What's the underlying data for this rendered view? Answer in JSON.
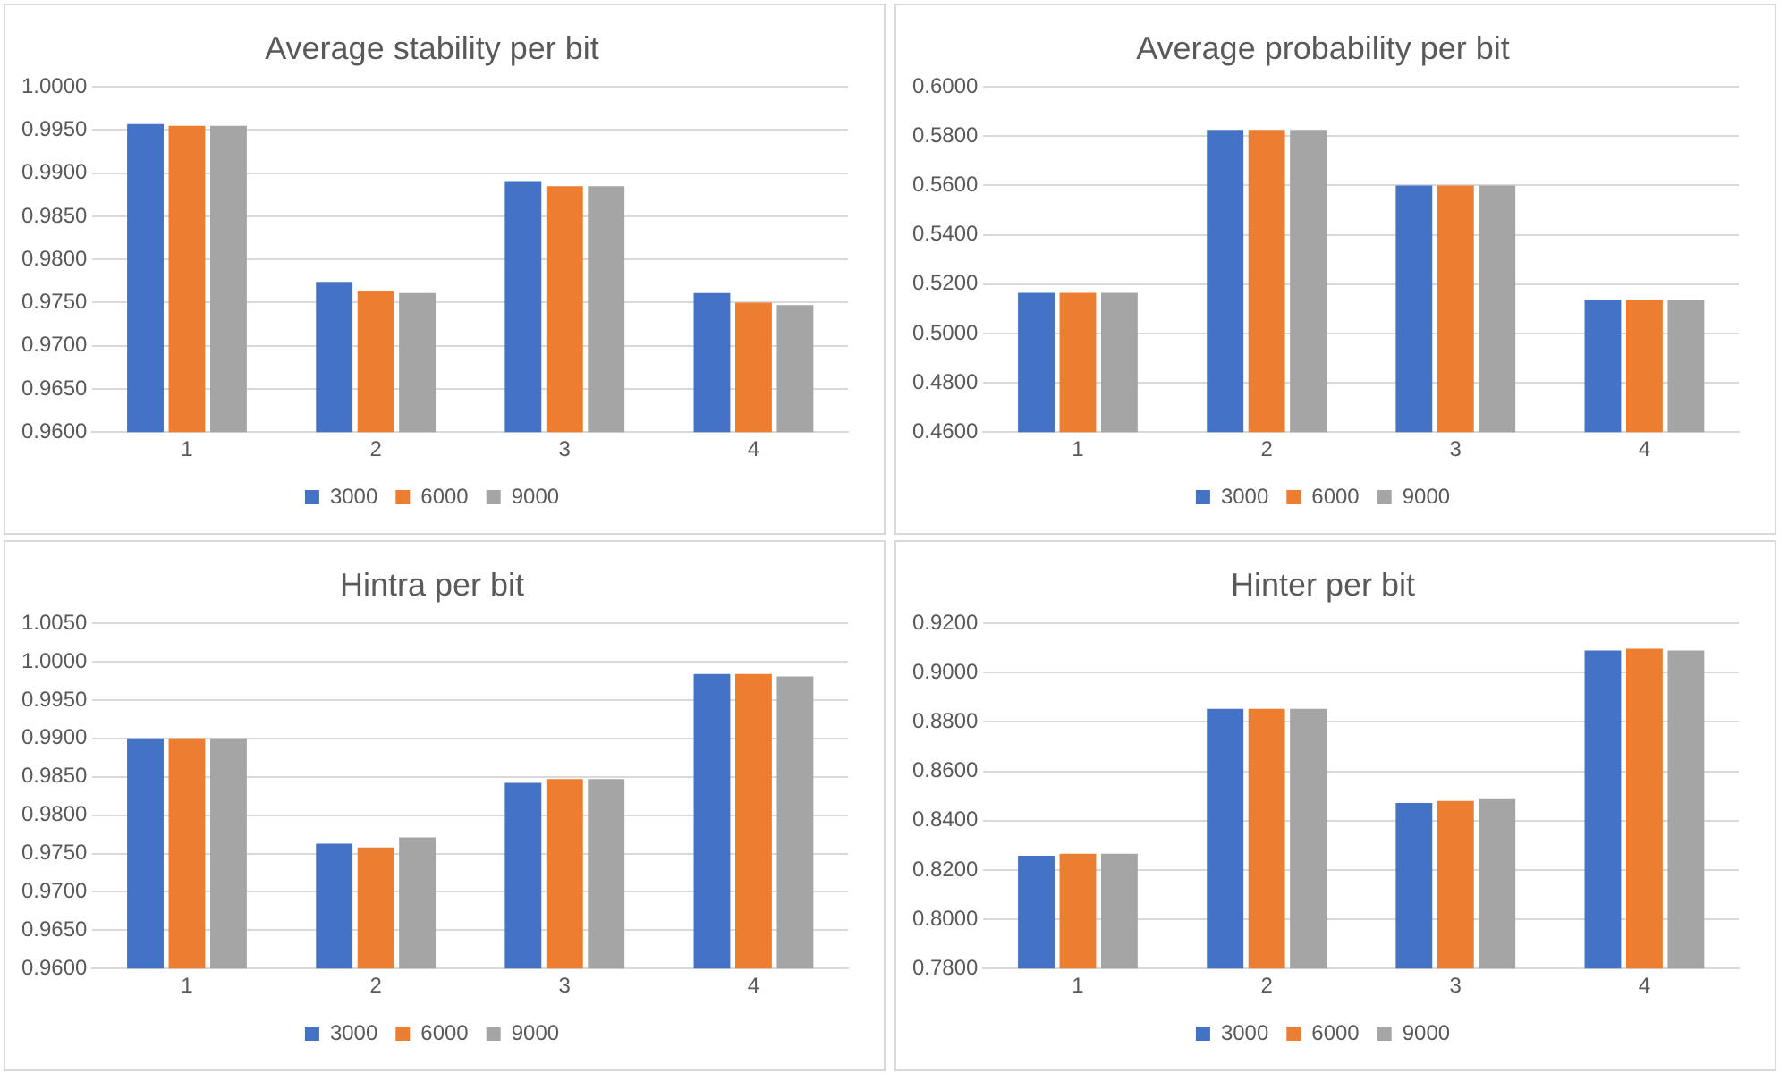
{
  "chart_data": [
    {
      "type": "bar",
      "title": "Average stability per bit",
      "categories": [
        "1",
        "2",
        "3",
        "4"
      ],
      "series": [
        {
          "name": "3000",
          "color": "#4472c4",
          "values": [
            0.9957,
            0.9774,
            0.9891,
            0.9761
          ]
        },
        {
          "name": "6000",
          "color": "#ed7d31",
          "values": [
            0.9955,
            0.9763,
            0.9885,
            0.975
          ]
        },
        {
          "name": "9000",
          "color": "#a5a5a5",
          "values": [
            0.9955,
            0.9761,
            0.9885,
            0.9747
          ]
        }
      ],
      "ylim": [
        0.96,
        1.0
      ],
      "yticks": [
        {
          "value": 0.96,
          "label": "0.9600"
        },
        {
          "value": 0.965,
          "label": "0.9650"
        },
        {
          "value": 0.97,
          "label": "0.9700"
        },
        {
          "value": 0.975,
          "label": "0.9750"
        },
        {
          "value": 0.98,
          "label": "0.9800"
        },
        {
          "value": 0.985,
          "label": "0.9850"
        },
        {
          "value": 0.99,
          "label": "0.9900"
        },
        {
          "value": 0.995,
          "label": "0.9950"
        },
        {
          "value": 1.0,
          "label": "1.0000"
        }
      ],
      "grid": "y",
      "legend": "bottom"
    },
    {
      "type": "bar",
      "title": "Average probability per bit",
      "categories": [
        "1",
        "2",
        "3",
        "4"
      ],
      "series": [
        {
          "name": "3000",
          "color": "#4472c4",
          "values": [
            0.5165,
            0.5826,
            0.56,
            0.5136
          ]
        },
        {
          "name": "6000",
          "color": "#ed7d31",
          "values": [
            0.5165,
            0.5826,
            0.56,
            0.5136
          ]
        },
        {
          "name": "9000",
          "color": "#a5a5a5",
          "values": [
            0.5165,
            0.5826,
            0.56,
            0.5136
          ]
        }
      ],
      "ylim": [
        0.46,
        0.6
      ],
      "yticks": [
        {
          "value": 0.46,
          "label": "0.4600"
        },
        {
          "value": 0.48,
          "label": "0.4800"
        },
        {
          "value": 0.5,
          "label": "0.5000"
        },
        {
          "value": 0.52,
          "label": "0.5200"
        },
        {
          "value": 0.54,
          "label": "0.5400"
        },
        {
          "value": 0.56,
          "label": "0.5600"
        },
        {
          "value": 0.58,
          "label": "0.5800"
        },
        {
          "value": 0.6,
          "label": "0.6000"
        }
      ],
      "grid": "y",
      "legend": "bottom"
    },
    {
      "type": "bar",
      "title": "Hintra per bit",
      "categories": [
        "1",
        "2",
        "3",
        "4"
      ],
      "series": [
        {
          "name": "3000",
          "color": "#4472c4",
          "values": [
            0.99,
            0.9763,
            0.9842,
            0.9984
          ]
        },
        {
          "name": "6000",
          "color": "#ed7d31",
          "values": [
            0.99,
            0.9758,
            0.9847,
            0.9984
          ]
        },
        {
          "name": "9000",
          "color": "#a5a5a5",
          "values": [
            0.99,
            0.9771,
            0.9847,
            0.9981
          ]
        }
      ],
      "ylim": [
        0.96,
        1.005
      ],
      "yticks": [
        {
          "value": 0.96,
          "label": "0.9600"
        },
        {
          "value": 0.965,
          "label": "0.9650"
        },
        {
          "value": 0.97,
          "label": "0.9700"
        },
        {
          "value": 0.975,
          "label": "0.9750"
        },
        {
          "value": 0.98,
          "label": "0.9800"
        },
        {
          "value": 0.985,
          "label": "0.9850"
        },
        {
          "value": 0.99,
          "label": "0.9900"
        },
        {
          "value": 0.995,
          "label": "0.9950"
        },
        {
          "value": 1.0,
          "label": "1.0000"
        },
        {
          "value": 1.005,
          "label": "1.0050"
        }
      ],
      "grid": "y",
      "legend": "bottom"
    },
    {
      "type": "bar",
      "title": "Hinter per bit",
      "categories": [
        "1",
        "2",
        "3",
        "4"
      ],
      "series": [
        {
          "name": "3000",
          "color": "#4472c4",
          "values": [
            0.8258,
            0.8853,
            0.8472,
            0.909
          ]
        },
        {
          "name": "6000",
          "color": "#ed7d31",
          "values": [
            0.8266,
            0.8853,
            0.848,
            0.9097
          ]
        },
        {
          "name": "9000",
          "color": "#a5a5a5",
          "values": [
            0.8266,
            0.8853,
            0.8487,
            0.909
          ]
        }
      ],
      "ylim": [
        0.78,
        0.92
      ],
      "yticks": [
        {
          "value": 0.78,
          "label": "0.7800"
        },
        {
          "value": 0.8,
          "label": "0.8000"
        },
        {
          "value": 0.82,
          "label": "0.8200"
        },
        {
          "value": 0.84,
          "label": "0.8400"
        },
        {
          "value": 0.86,
          "label": "0.8600"
        },
        {
          "value": 0.88,
          "label": "0.8800"
        },
        {
          "value": 0.9,
          "label": "0.9000"
        },
        {
          "value": 0.92,
          "label": "0.9200"
        }
      ],
      "grid": "y",
      "legend": "bottom"
    }
  ]
}
